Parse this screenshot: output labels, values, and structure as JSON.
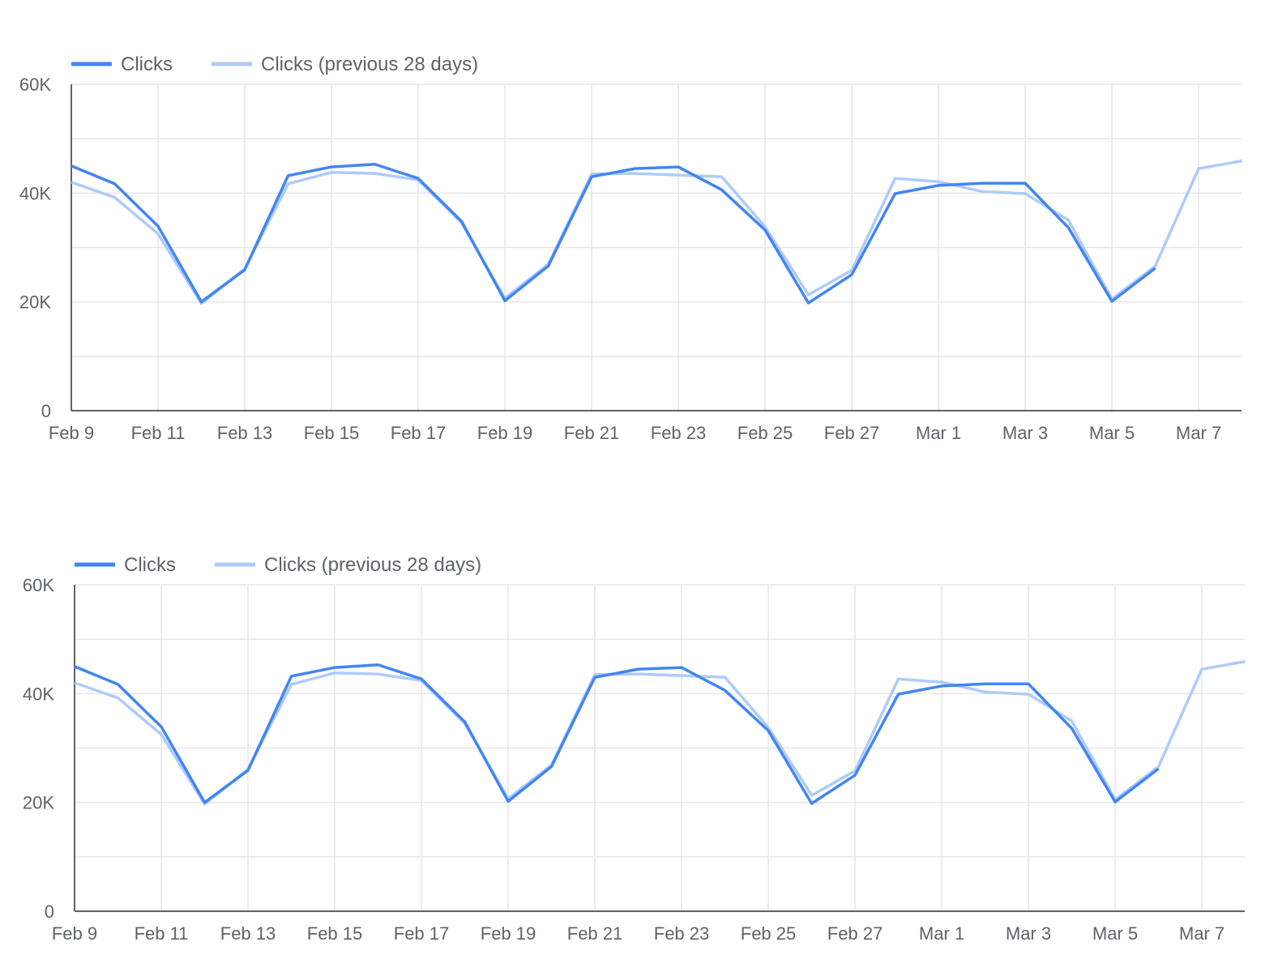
{
  "chart_data": [
    {
      "type": "line",
      "title": "",
      "xlabel": "",
      "ylabel": "",
      "legend": "top-left",
      "grid": true,
      "x": [
        "Feb 9",
        "Feb 10",
        "Feb 11",
        "Feb 12",
        "Feb 13",
        "Feb 14",
        "Feb 15",
        "Feb 16",
        "Feb 17",
        "Feb 18",
        "Feb 19",
        "Feb 20",
        "Feb 21",
        "Feb 22",
        "Feb 23",
        "Feb 24",
        "Feb 25",
        "Feb 26",
        "Feb 27",
        "Feb 28",
        "Mar 1",
        "Mar 2",
        "Mar 3",
        "Mar 4",
        "Mar 5",
        "Mar 6",
        "Mar 7",
        "Mar 8"
      ],
      "x_tick_labels": [
        "Feb 9",
        "Feb 11",
        "Feb 13",
        "Feb 15",
        "Feb 17",
        "Feb 19",
        "Feb 21",
        "Feb 23",
        "Feb 25",
        "Feb 27",
        "Mar 1",
        "Mar 3",
        "Mar 5",
        "Mar 7"
      ],
      "y_tick_labels": [
        "0",
        "20K",
        "40K",
        "60K"
      ],
      "ylim": [
        0,
        60000
      ],
      "series": [
        {
          "name": "Clicks",
          "color": "#4285f4",
          "values": [
            45000,
            41700,
            33900,
            20000,
            25900,
            43200,
            44800,
            45300,
            42700,
            34800,
            20200,
            26600,
            43000,
            44500,
            44800,
            40600,
            33200,
            19800,
            25000,
            39900,
            41400,
            41800,
            41800,
            33600,
            20100,
            26200,
            null,
            null
          ]
        },
        {
          "name": "Clicks (previous 28 days)",
          "color": "#aecbfa",
          "values": [
            42000,
            39200,
            32500,
            19700,
            26100,
            41700,
            43800,
            43600,
            42400,
            34500,
            20700,
            26900,
            43500,
            43600,
            43300,
            43000,
            33800,
            21300,
            25800,
            42700,
            42100,
            40300,
            39900,
            35000,
            20500,
            26600,
            44500,
            45900
          ]
        }
      ]
    },
    {
      "type": "line",
      "title": "",
      "xlabel": "",
      "ylabel": "",
      "legend": "top-left",
      "grid": true,
      "x": [
        "Feb 9",
        "Feb 10",
        "Feb 11",
        "Feb 12",
        "Feb 13",
        "Feb 14",
        "Feb 15",
        "Feb 16",
        "Feb 17",
        "Feb 18",
        "Feb 19",
        "Feb 20",
        "Feb 21",
        "Feb 22",
        "Feb 23",
        "Feb 24",
        "Feb 25",
        "Feb 26",
        "Feb 27",
        "Feb 28",
        "Mar 1",
        "Mar 2",
        "Mar 3",
        "Mar 4",
        "Mar 5",
        "Mar 6",
        "Mar 7",
        "Mar 8"
      ],
      "x_tick_labels": [
        "Feb 9",
        "Feb 11",
        "Feb 13",
        "Feb 15",
        "Feb 17",
        "Feb 19",
        "Feb 21",
        "Feb 23",
        "Feb 25",
        "Feb 27",
        "Mar 1",
        "Mar 3",
        "Mar 5",
        "Mar 7"
      ],
      "y_tick_labels": [
        "0",
        "20K",
        "40K",
        "60K"
      ],
      "ylim": [
        0,
        60000
      ],
      "series": [
        {
          "name": "Clicks",
          "color": "#4285f4",
          "values": [
            45000,
            41700,
            33900,
            20000,
            25900,
            43200,
            44800,
            45300,
            42700,
            34800,
            20200,
            26600,
            43000,
            44500,
            44800,
            40600,
            33200,
            19800,
            25000,
            39900,
            41400,
            41800,
            41800,
            33600,
            20100,
            26200,
            null,
            null
          ]
        },
        {
          "name": "Clicks (previous 28 days)",
          "color": "#aecbfa",
          "values": [
            42000,
            39200,
            32500,
            19700,
            26100,
            41700,
            43800,
            43600,
            42400,
            34500,
            20700,
            26900,
            43500,
            43600,
            43300,
            43000,
            33800,
            21300,
            25800,
            42700,
            42100,
            40300,
            39900,
            35000,
            20500,
            26600,
            44500,
            45900
          ]
        }
      ]
    }
  ]
}
